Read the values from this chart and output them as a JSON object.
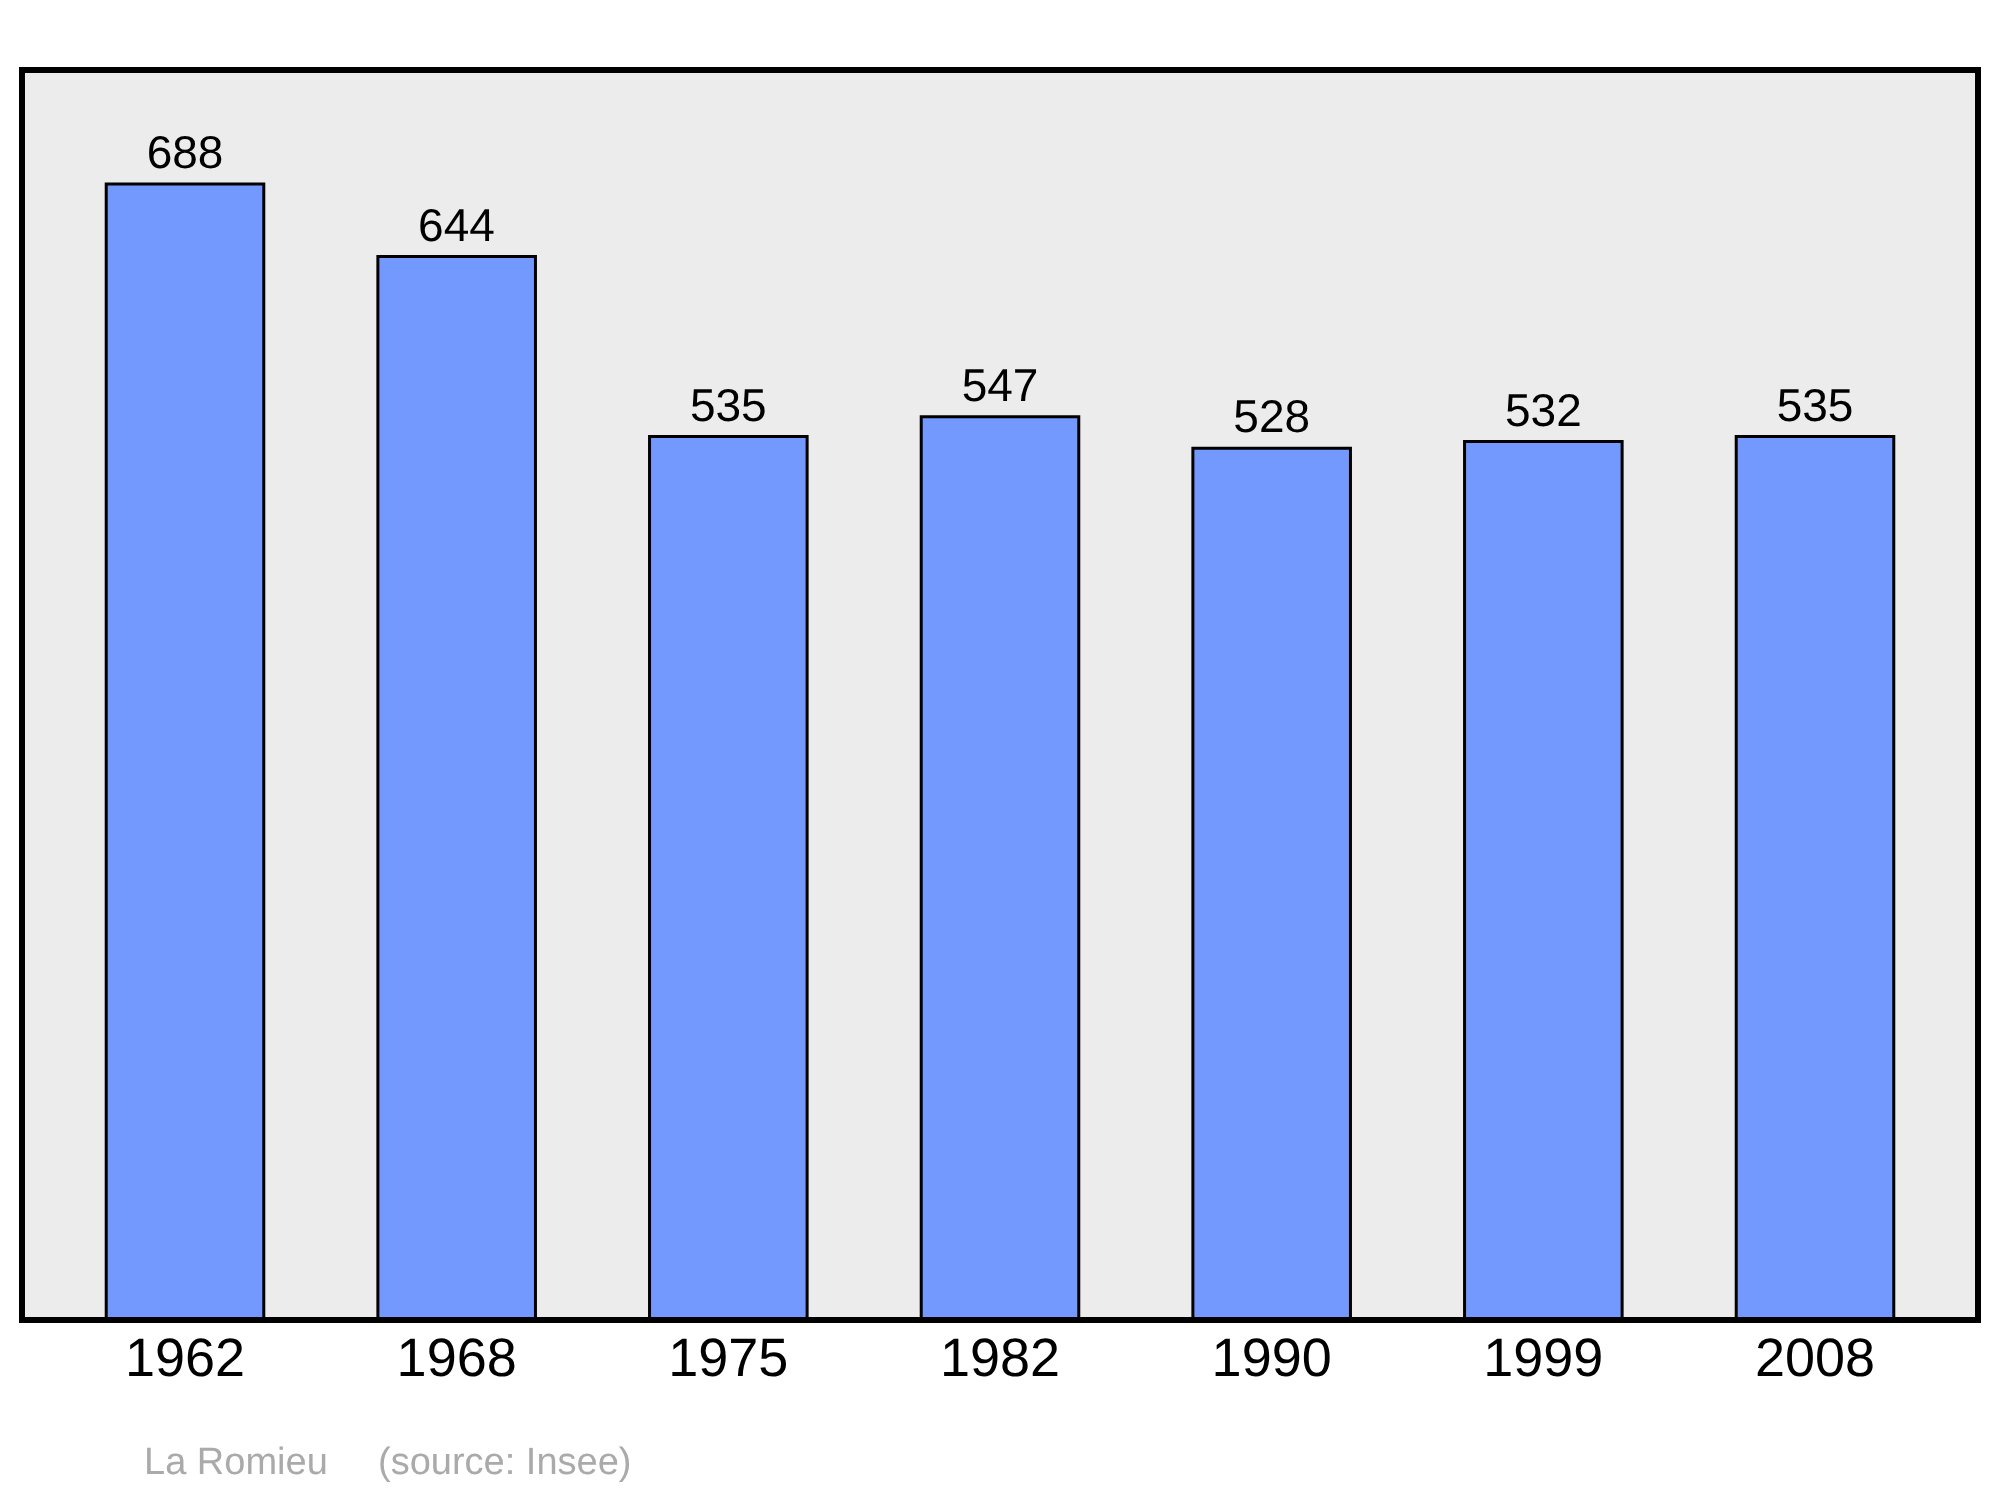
{
  "chart_data": {
    "type": "bar",
    "categories": [
      "1962",
      "1968",
      "1975",
      "1982",
      "1990",
      "1999",
      "2008"
    ],
    "values": [
      688,
      644,
      535,
      547,
      528,
      532,
      535
    ],
    "color": "#7399ff",
    "data_labels": true,
    "ylim": [
      0,
      757
    ],
    "grid": false,
    "legend": false,
    "annotations": [
      "La Romieu",
      "(source: Insee)"
    ]
  }
}
